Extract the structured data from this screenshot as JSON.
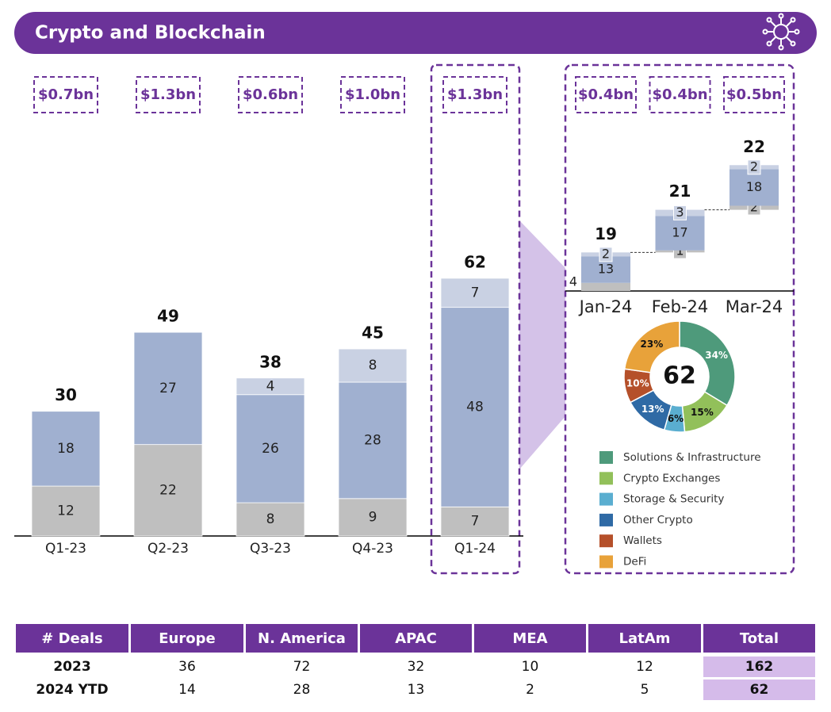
{
  "header": {
    "title": "Crypto and Blockchain"
  },
  "chart_data": [
    {
      "type": "stacked_bar",
      "categories": [
        "Q1-23",
        "Q2-23",
        "Q3-23",
        "Q4-23",
        "Q1-24"
      ],
      "funding_labels": [
        "$0.7bn",
        "$1.3bn",
        "$0.6bn",
        "$1.0bn",
        "$1.3bn"
      ],
      "series": [
        {
          "color": "#bfbfbf",
          "values": [
            12,
            22,
            8,
            9,
            7
          ]
        },
        {
          "color": "#a0b0d0",
          "values": [
            18,
            27,
            26,
            28,
            48
          ]
        },
        {
          "color": "#c9d1e3",
          "values": [
            null,
            null,
            4,
            8,
            7
          ]
        }
      ],
      "totals": [
        30,
        49,
        38,
        45,
        62
      ],
      "ylim": [
        0,
        70
      ]
    },
    {
      "type": "waterfall",
      "categories": [
        "Jan-24",
        "Feb-24",
        "Mar-24"
      ],
      "funding_labels": [
        "$0.4bn",
        "$0.4bn",
        "$0.5bn"
      ],
      "series": [
        {
          "color": "#bfbfbf",
          "values": [
            4,
            1,
            2
          ]
        },
        {
          "color": "#a0b0d0",
          "values": [
            13,
            17,
            18
          ]
        },
        {
          "color": "#c9d1e3",
          "values": [
            2,
            3,
            2
          ]
        }
      ],
      "totals": [
        19,
        21,
        22
      ],
      "ylim": [
        0,
        75
      ]
    },
    {
      "type": "donut",
      "total": 62,
      "categories": [
        "Solutions & Infrastructure",
        "Crypto Exchanges",
        "Storage & Security",
        "Other Crypto",
        "Wallets",
        "DeFi"
      ],
      "values": [
        34,
        15,
        6,
        13,
        10,
        23
      ],
      "value_labels": [
        "34%",
        "15%",
        "6%",
        "13%",
        "10%",
        "23%"
      ],
      "colors": [
        "#4e9a7b",
        "#92c05a",
        "#5aaed0",
        "#2f6aa5",
        "#b5502a",
        "#e8a23a"
      ]
    }
  ],
  "table": {
    "header": [
      "# Deals",
      "Europe",
      "N. America",
      "APAC",
      "MEA",
      "LatAm",
      "Total"
    ],
    "rows": [
      [
        "2023",
        36,
        72,
        32,
        10,
        12,
        162
      ],
      [
        "2024 YTD",
        14,
        28,
        13,
        2,
        5,
        62
      ]
    ]
  }
}
